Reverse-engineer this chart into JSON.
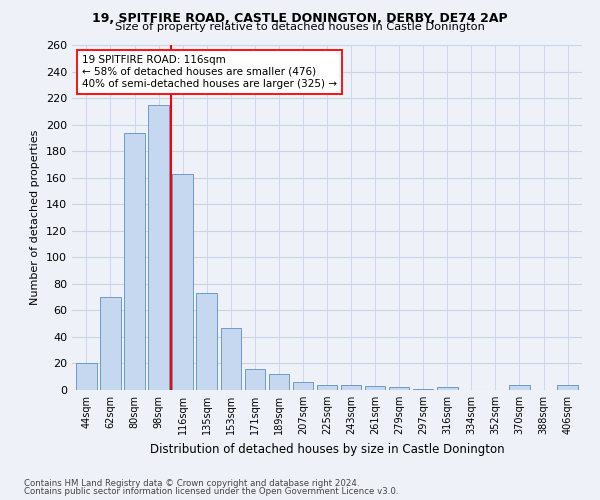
{
  "title1": "19, SPITFIRE ROAD, CASTLE DONINGTON, DERBY, DE74 2AP",
  "title2": "Size of property relative to detached houses in Castle Donington",
  "xlabel": "Distribution of detached houses by size in Castle Donington",
  "ylabel": "Number of detached properties",
  "bar_labels": [
    "44sqm",
    "62sqm",
    "80sqm",
    "98sqm",
    "116sqm",
    "135sqm",
    "153sqm",
    "171sqm",
    "189sqm",
    "207sqm",
    "225sqm",
    "243sqm",
    "261sqm",
    "279sqm",
    "297sqm",
    "316sqm",
    "334sqm",
    "352sqm",
    "370sqm",
    "388sqm",
    "406sqm"
  ],
  "bar_values": [
    20,
    70,
    194,
    215,
    163,
    73,
    47,
    16,
    12,
    6,
    4,
    4,
    3,
    2,
    1,
    2,
    0,
    0,
    4,
    0,
    4
  ],
  "bar_color": "#c5d8f0",
  "bar_edge_color": "#5b8ec5",
  "vline_x_index": 4,
  "annotation_text": "19 SPITFIRE ROAD: 116sqm\n← 58% of detached houses are smaller (476)\n40% of semi-detached houses are larger (325) →",
  "annotation_box_color": "white",
  "annotation_box_edge": "red",
  "vline_color": "red",
  "ylim": [
    0,
    260
  ],
  "yticks": [
    0,
    20,
    40,
    60,
    80,
    100,
    120,
    140,
    160,
    180,
    200,
    220,
    240,
    260
  ],
  "footer1": "Contains HM Land Registry data © Crown copyright and database right 2024.",
  "footer2": "Contains public sector information licensed under the Open Government Licence v3.0.",
  "bg_color": "#eef2f8",
  "grid_color": "#c8d4e8"
}
